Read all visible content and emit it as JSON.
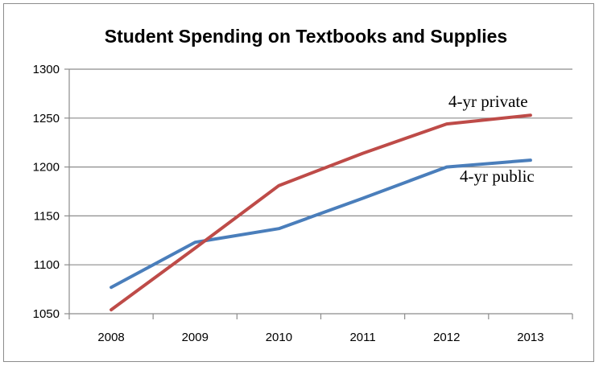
{
  "chart_data": {
    "type": "line",
    "title": "Student Spending on Textbooks and Supplies",
    "xlabel": "",
    "ylabel": "",
    "categories": [
      "2008",
      "2009",
      "2010",
      "2011",
      "2012",
      "2013"
    ],
    "ylim": [
      1050,
      1300
    ],
    "yticks": [
      "1300",
      "1250",
      "1200",
      "1150",
      "1100",
      "1050"
    ],
    "grid": true,
    "legend": "none",
    "series": [
      {
        "name": "4-yr public",
        "color": "#4a7ebb",
        "values": [
          1077,
          1123,
          1137,
          1168,
          1200,
          1207
        ]
      },
      {
        "name": "4-yr private",
        "color": "#be4b48",
        "values": [
          1054,
          1117,
          1181,
          1214,
          1244,
          1253
        ]
      }
    ],
    "annotations": [
      "4-yr private",
      "4-yr public"
    ]
  }
}
